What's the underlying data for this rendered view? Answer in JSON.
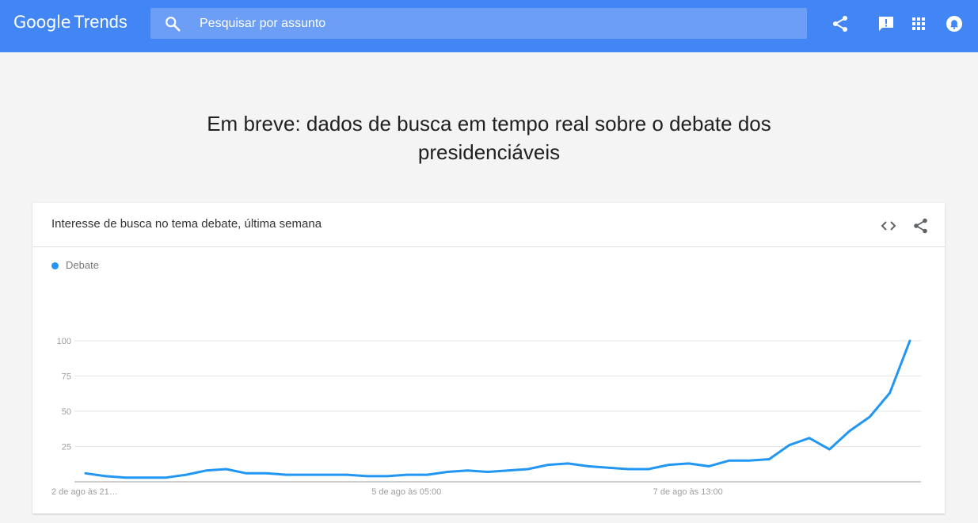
{
  "header": {
    "logo_brand": "Google",
    "logo_product": "Trends",
    "search_placeholder": "Pesquisar por assunto",
    "icons": [
      "search-icon",
      "share-icon",
      "feedback-icon",
      "apps-icon",
      "notifications-icon"
    ]
  },
  "headline": "Em breve: dados de busca em tempo real sobre o debate dos presidenciáveis",
  "card": {
    "title": "Interesse de busca no tema debate, última semana",
    "icons": [
      "embed-icon",
      "share-icon"
    ]
  },
  "colors": {
    "header_bg": "#4285f4",
    "search_bg": "#6d9ef6",
    "series": "#2196f3"
  },
  "chart_data": {
    "type": "line",
    "series": [
      {
        "name": "Debate",
        "values": [
          6,
          4,
          3,
          3,
          3,
          5,
          8,
          9,
          6,
          6,
          5,
          5,
          5,
          5,
          4,
          4,
          5,
          5,
          7,
          8,
          7,
          8,
          9,
          12,
          13,
          11,
          10,
          9,
          9,
          12,
          13,
          11,
          15,
          15,
          16,
          26,
          31,
          23,
          36,
          46,
          63,
          100
        ]
      }
    ],
    "x_tick_labels": [
      "2 de ago às 21…",
      "5 de ago às 05:00",
      "7 de ago às 13:00"
    ],
    "x_tick_indices": [
      0,
      16,
      30
    ],
    "y_ticks": [
      25,
      50,
      75,
      100
    ],
    "ylim": [
      0,
      100
    ],
    "grid": true,
    "legend_position": "top-left"
  }
}
